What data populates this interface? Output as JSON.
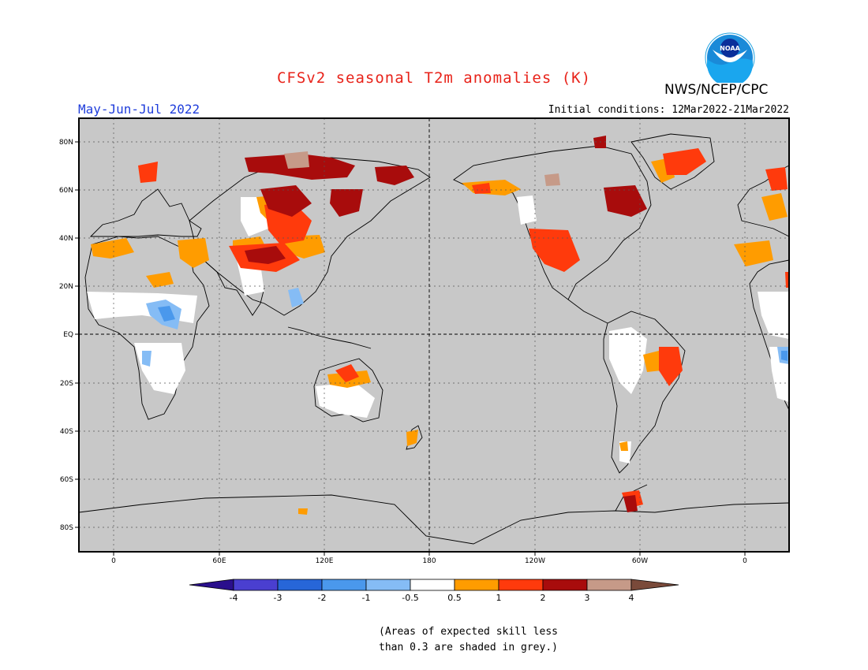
{
  "header": {
    "title": "CFSv2 seasonal T2m anomalies (K)",
    "period": "May-Jun-Jul 2022",
    "initial_conditions": "Initial conditions: 12Mar2022-21Mar2022",
    "agency": "NWS/NCEP/CPC",
    "logo_text": "NOAA"
  },
  "map": {
    "lat_labels": [
      "80N",
      "60N",
      "40N",
      "20N",
      "EQ",
      "20S",
      "40S",
      "60S",
      "80S"
    ],
    "lon_labels": [
      "0",
      "60E",
      "120E",
      "180",
      "120W",
      "60W",
      "0"
    ],
    "background_color": "#c8c8c8"
  },
  "colorbar": {
    "tick_labels": [
      "-4",
      "-3",
      "-2",
      "-1",
      "-0.5",
      "0.5",
      "1",
      "2",
      "3",
      "4"
    ],
    "colors": [
      "#2a0f8c",
      "#4a3fd0",
      "#2766d8",
      "#4a98ec",
      "#85bcf5",
      "#ffffff",
      "#ff9c00",
      "#ff3a0c",
      "#a80c0c",
      "#c69a88",
      "#7a4a3a"
    ]
  },
  "footnote": {
    "line1": "(Areas of expected skill less",
    "line2": "than 0.3 are shaded in grey.)"
  },
  "colors": {
    "title": "#e8231a",
    "period": "#1f3ddb"
  }
}
